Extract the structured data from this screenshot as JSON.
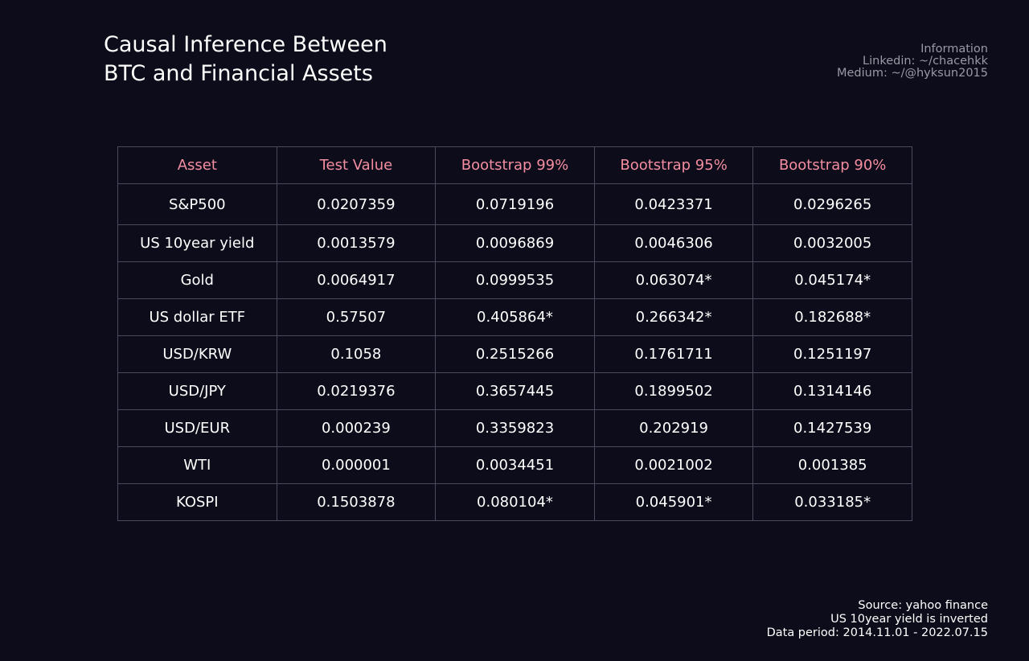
{
  "title": {
    "line1": "Causal Inference Between",
    "line2": "BTC and Financial Assets"
  },
  "info": {
    "heading": "Information",
    "linkedin": "Linkedin: ~/chacehkk",
    "medium": "Medium: ~/@hyksun2015"
  },
  "footer": {
    "source": "Source: yahoo finance",
    "note": "US 10year yield is inverted",
    "period": "Data period: 2014.11.01 - 2022.07.15"
  },
  "colors": {
    "background": "#0c0c1a",
    "header_text": "#f48ea0",
    "cell_text": "#ffffff",
    "grid": "#4a4a5e"
  },
  "chart_data": {
    "type": "table",
    "columns": [
      "Asset",
      "Test Value",
      "Bootstrap 99%",
      "Bootstrap 95%",
      "Bootstrap 90%"
    ],
    "rows": [
      [
        "S&P500",
        "0.0207359",
        "0.0719196",
        "0.0423371",
        "0.0296265"
      ],
      [
        "US 10year yield",
        "0.0013579",
        "0.0096869",
        "0.0046306",
        "0.0032005"
      ],
      [
        "Gold",
        "0.0064917",
        "0.0999535",
        "0.063074*",
        "0.045174*"
      ],
      [
        "US dollar ETF",
        "0.57507",
        "0.405864*",
        "0.266342*",
        "0.182688*"
      ],
      [
        "USD/KRW",
        "0.1058",
        "0.2515266",
        "0.1761711",
        "0.1251197"
      ],
      [
        "USD/JPY",
        "0.0219376",
        "0.3657445",
        "0.1899502",
        "0.1314146"
      ],
      [
        "USD/EUR",
        "0.000239",
        "0.3359823",
        "0.202919",
        "0.1427539"
      ],
      [
        "WTI",
        "0.000001",
        "0.0034451",
        "0.0021002",
        "0.001385"
      ],
      [
        "KOSPI",
        "0.1503878",
        "0.080104*",
        "0.045901*",
        "0.033185*"
      ]
    ]
  }
}
